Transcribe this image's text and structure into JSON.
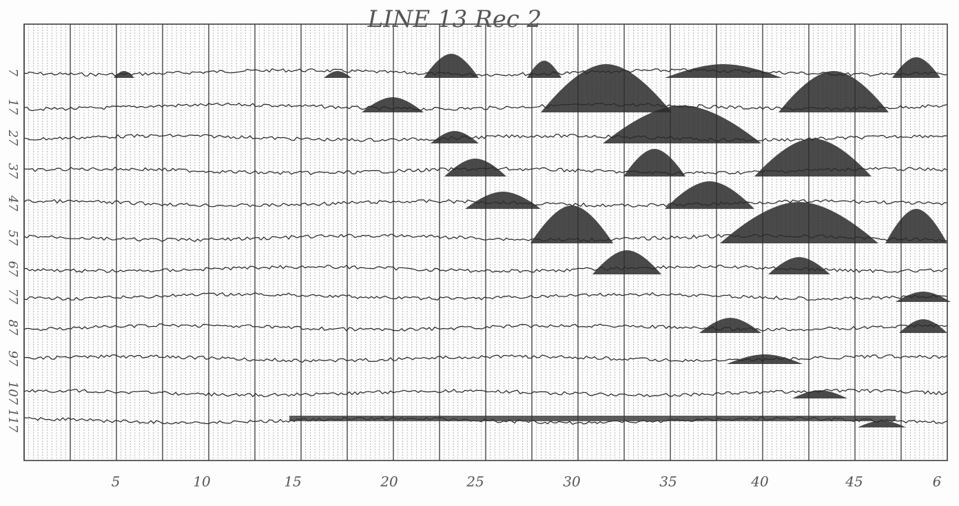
{
  "title": "LINE 13 Rec 2",
  "trace_labels": [
    "7",
    "17",
    "27",
    "37",
    "47",
    "57",
    "67",
    "77",
    "87",
    "97",
    "107",
    "117"
  ],
  "x_labels": [
    "5",
    "10",
    "15",
    "20",
    "25",
    "30",
    "35",
    "40",
    "45",
    "6"
  ]
}
